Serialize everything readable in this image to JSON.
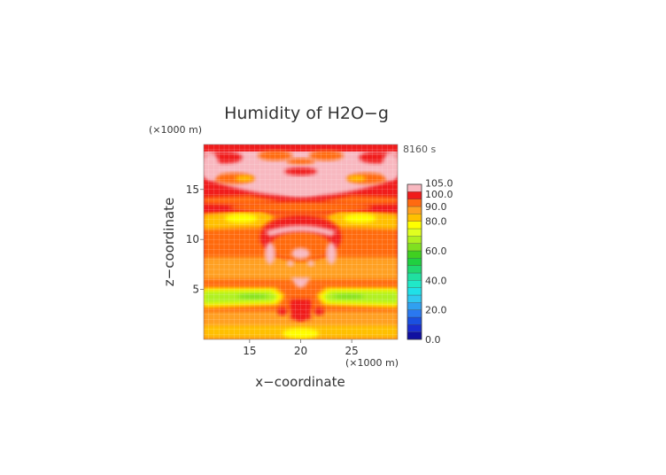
{
  "chart_data": {
    "type": "heatmap",
    "title": "Humidity of H2O−g",
    "time_label": "8160 s",
    "xlabel": "x−coordinate",
    "ylabel": "z−coordinate",
    "x_unit": "(×1000 m)",
    "y_unit": "(×1000 m)",
    "xlim": [
      10.5,
      29.5
    ],
    "ylim": [
      0,
      19.5
    ],
    "x_ticks": [
      {
        "value": 15,
        "label": "15"
      },
      {
        "value": 20,
        "label": "20"
      },
      {
        "value": 25,
        "label": "25"
      }
    ],
    "y_ticks": [
      {
        "value": 5,
        "label": "5"
      },
      {
        "value": 10,
        "label": "10"
      },
      {
        "value": 15,
        "label": "15"
      }
    ],
    "grid": true,
    "legend_position": "right",
    "colorbar": {
      "min": 0,
      "max": 105,
      "labels": [
        {
          "value": 105,
          "label": "105.0"
        },
        {
          "value": 100,
          "label": "100.0"
        },
        {
          "value": 90,
          "label": "90.0"
        },
        {
          "value": 80,
          "label": "80.0"
        },
        {
          "value": 60,
          "label": "60.0"
        },
        {
          "value": 40,
          "label": "40.0"
        },
        {
          "value": 20,
          "label": "20.0"
        },
        {
          "value": 0,
          "label": "0.0"
        }
      ],
      "levels": [
        {
          "from": 0,
          "to": 5,
          "color": "#1010a0"
        },
        {
          "from": 5,
          "to": 10,
          "color": "#1a2ed0"
        },
        {
          "from": 10,
          "to": 15,
          "color": "#1a50e0"
        },
        {
          "from": 15,
          "to": 20,
          "color": "#2a78f0"
        },
        {
          "from": 20,
          "to": 25,
          "color": "#30a0f0"
        },
        {
          "from": 25,
          "to": 30,
          "color": "#30c8f0"
        },
        {
          "from": 30,
          "to": 35,
          "color": "#20e0e8"
        },
        {
          "from": 35,
          "to": 40,
          "color": "#20e8c8"
        },
        {
          "from": 40,
          "to": 45,
          "color": "#20e0a0"
        },
        {
          "from": 45,
          "to": 50,
          "color": "#20d870"
        },
        {
          "from": 50,
          "to": 55,
          "color": "#20d040"
        },
        {
          "from": 55,
          "to": 60,
          "color": "#40d020"
        },
        {
          "from": 60,
          "to": 65,
          "color": "#80e020"
        },
        {
          "from": 65,
          "to": 70,
          "color": "#b0f020"
        },
        {
          "from": 70,
          "to": 75,
          "color": "#e0ff20"
        },
        {
          "from": 75,
          "to": 80,
          "color": "#ffff00"
        },
        {
          "from": 80,
          "to": 85,
          "color": "#ffc000"
        },
        {
          "from": 85,
          "to": 90,
          "color": "#ffa020"
        },
        {
          "from": 90,
          "to": 95,
          "color": "#ff6a10"
        },
        {
          "from": 95,
          "to": 100,
          "color": "#f01c1c"
        },
        {
          "from": 100,
          "to": 105,
          "color": "#f8b8c0"
        }
      ]
    },
    "regions": [
      {
        "name": "saturated-background",
        "value": 97.5,
        "x": [
          10.5,
          29.5
        ],
        "y": [
          0,
          19.5
        ]
      },
      {
        "name": "orange-band-upper",
        "value": 92.5,
        "x": [
          10.5,
          29.5
        ],
        "y": [
          17.3,
          18.5
        ]
      },
      {
        "name": "orange-lobe-left",
        "value": 92.5,
        "x": [
          11,
          16.5
        ],
        "y": [
          15.6,
          17
        ]
      },
      {
        "name": "orange-lobe-right",
        "value": 92.5,
        "x": [
          24.5,
          29.5
        ],
        "y": [
          15.6,
          17
        ]
      },
      {
        "name": "mid-layer",
        "value": 87.5,
        "x": [
          10.5,
          29.5
        ],
        "y": [
          5.5,
          12.5
        ]
      },
      {
        "name": "low-layer",
        "value": 85,
        "x": [
          10.5,
          29.5
        ],
        "y": [
          0.3,
          3
        ]
      },
      {
        "name": "green-band-left",
        "value": 67.5,
        "x": [
          10.5,
          18.4
        ],
        "y": [
          3.2,
          5.1
        ]
      },
      {
        "name": "green-band-right",
        "value": 67.5,
        "x": [
          21.4,
          29.5
        ],
        "y": [
          3.2,
          5.1
        ]
      },
      {
        "name": "yellow-patch-left",
        "value": 77.5,
        "x": [
          12,
          16
        ],
        "y": [
          11.5,
          12.9
        ]
      },
      {
        "name": "yellow-patch-right",
        "value": 77.5,
        "x": [
          24,
          28
        ],
        "y": [
          11.5,
          12.9
        ]
      },
      {
        "name": "supersaturated-ring",
        "value": 102.5,
        "x": [
          16.5,
          23.5
        ],
        "y": [
          8,
          11.5
        ]
      },
      {
        "name": "supersaturated-top",
        "value": 102.5,
        "x": [
          10.5,
          29.5
        ],
        "y": [
          13.8,
          19.2
        ]
      }
    ]
  }
}
